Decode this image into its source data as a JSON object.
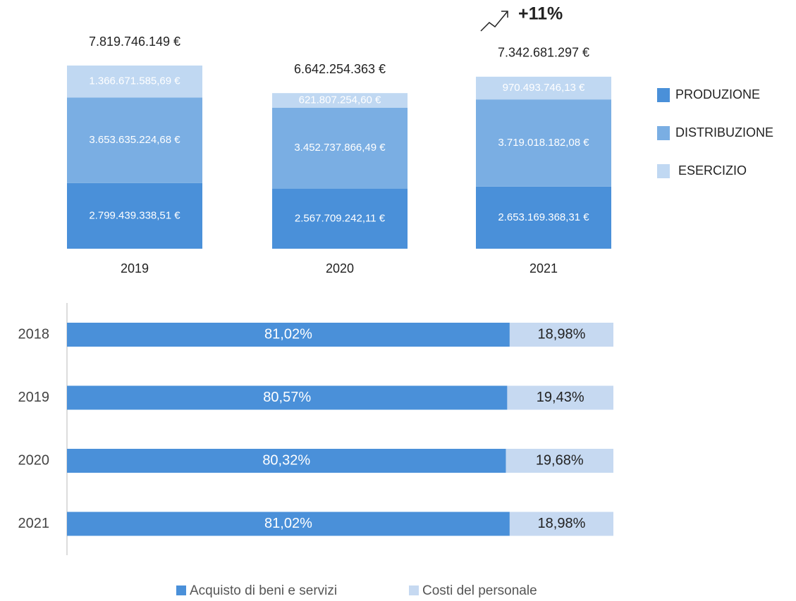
{
  "chart_data": [
    {
      "type": "stacked_bar",
      "categories": [
        "2019",
        "2020",
        "2021"
      ],
      "series": [
        {
          "name": "PRODUZIONE",
          "color": "#4a90d9",
          "values": [
            2799439338.51,
            2567709242.11,
            2653169368.31
          ],
          "value_labels": [
            "2.799.439.338,51 €",
            "2.567.709.242,11 €",
            "2.653.169.368,31 €"
          ]
        },
        {
          "name": "DISTRIBUZIONE",
          "color": "#7aaee3",
          "values": [
            3653635224.68,
            3452737866.49,
            3719018182.08
          ],
          "value_labels": [
            "3.653.635.224,68 €",
            "3.452.737.866,49 €",
            "3.719.018.182,08 €"
          ]
        },
        {
          "name": "ESERCIZIO",
          "color": "#c0d8f2",
          "values": [
            1366671585.69,
            621807254.6,
            970493746.13
          ],
          "value_labels": [
            "1.366.671.585,69 €",
            "621.807.254,60 €",
            "970.493.746,13 €"
          ]
        }
      ],
      "totals": [
        7819746149,
        6642254363,
        7342681297
      ],
      "total_labels": [
        "7.819.746.149 €",
        "6.642.254.363 €",
        "7.342.681.297 €"
      ],
      "annotation": "+11%"
    },
    {
      "type": "stacked_hbar",
      "categories": [
        "2018",
        "2019",
        "2020",
        "2021"
      ],
      "series": [
        {
          "name": "Acquisto di beni e servizi",
          "color": "#4a90d9",
          "values": [
            81.02,
            80.57,
            80.32,
            81.02
          ],
          "value_labels": [
            "81,02%",
            "80,57%",
            "80,32%",
            "81,02%"
          ]
        },
        {
          "name": "Costi del personale",
          "color": "#c6d9f1",
          "values": [
            18.98,
            19.43,
            19.68,
            18.98
          ],
          "value_labels": [
            "18,98%",
            "19,43%",
            "19,68%",
            "18,98%"
          ]
        }
      ]
    }
  ]
}
